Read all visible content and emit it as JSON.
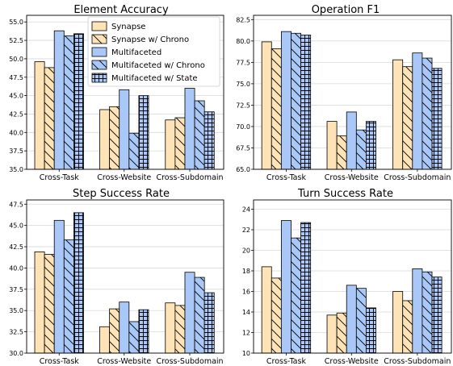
{
  "colors": {
    "synapse": "#fde3b5",
    "multifaceted": "#a9c8f7",
    "edge": "#000000",
    "grid": "#d9d9d9"
  },
  "legend": {
    "placement": "top-right of first panel",
    "entries": [
      {
        "name": "Synapse",
        "color": "#fde3b5",
        "hatch": "none"
      },
      {
        "name": "Synapse w/ Chrono",
        "color": "#fde3b5",
        "hatch": "backslash"
      },
      {
        "name": "Multifaceted",
        "color": "#a9c8f7",
        "hatch": "none"
      },
      {
        "name": "Multifaceted w/ Chrono",
        "color": "#a9c8f7",
        "hatch": "backslash"
      },
      {
        "name": "Multifaceted w/ State",
        "color": "#a9c8f7",
        "hatch": "grid"
      }
    ]
  },
  "chart_data": [
    {
      "type": "bar",
      "title": "Element Accuracy",
      "categories": [
        "Cross-Task",
        "Cross-Website",
        "Cross-Subdomain"
      ],
      "ylim": [
        35.0,
        55.9
      ],
      "yticks": [
        "35.0",
        "37.5",
        "40.0",
        "42.5",
        "45.0",
        "47.5",
        "50.0",
        "52.5",
        "55.0"
      ],
      "grid": "horizontal",
      "series": [
        {
          "name": "Synapse",
          "values": [
            49.6,
            43.1,
            41.7
          ]
        },
        {
          "name": "Synapse w/ Chrono",
          "values": [
            48.8,
            43.5,
            42.0
          ]
        },
        {
          "name": "Multifaceted",
          "values": [
            53.8,
            45.8,
            46.0
          ]
        },
        {
          "name": "Multifaceted w/ Chrono",
          "values": [
            53.1,
            39.9,
            44.3
          ]
        },
        {
          "name": "Multifaceted w/ State",
          "values": [
            53.4,
            45.0,
            42.8
          ]
        }
      ]
    },
    {
      "type": "bar",
      "title": "Operation F1",
      "categories": [
        "Cross-Task",
        "Cross-Website",
        "Cross-Subdomain"
      ],
      "ylim": [
        65.0,
        83.0
      ],
      "yticks": [
        "65.0",
        "67.5",
        "70.0",
        "72.5",
        "75.0",
        "77.5",
        "80.0",
        "82.5"
      ],
      "grid": "horizontal",
      "series": [
        {
          "name": "Synapse",
          "values": [
            79.9,
            70.6,
            77.8
          ]
        },
        {
          "name": "Synapse w/ Chrono",
          "values": [
            79.1,
            68.9,
            77.0
          ]
        },
        {
          "name": "Multifaceted",
          "values": [
            81.1,
            71.7,
            78.6
          ]
        },
        {
          "name": "Multifaceted w/ Chrono",
          "values": [
            80.9,
            69.6,
            78.0
          ]
        },
        {
          "name": "Multifaceted w/ State",
          "values": [
            80.7,
            70.6,
            76.8
          ]
        }
      ]
    },
    {
      "type": "bar",
      "title": "Step Success Rate",
      "categories": [
        "Cross-Task",
        "Cross-Website",
        "Cross-Subdomain"
      ],
      "ylim": [
        30.0,
        48.0
      ],
      "yticks": [
        "30.0",
        "32.5",
        "35.0",
        "37.5",
        "40.0",
        "42.5",
        "45.0",
        "47.5"
      ],
      "grid": "horizontal",
      "series": [
        {
          "name": "Synapse",
          "values": [
            41.9,
            33.1,
            35.9
          ]
        },
        {
          "name": "Synapse w/ Chrono",
          "values": [
            41.6,
            35.2,
            35.6
          ]
        },
        {
          "name": "Multifaceted",
          "values": [
            45.6,
            36.0,
            39.5
          ]
        },
        {
          "name": "Multifaceted w/ Chrono",
          "values": [
            43.3,
            33.7,
            38.9
          ]
        },
        {
          "name": "Multifaceted w/ State",
          "values": [
            46.5,
            35.1,
            37.1
          ]
        }
      ]
    },
    {
      "type": "bar",
      "title": "Turn Success Rate",
      "categories": [
        "Cross-Task",
        "Cross-Website",
        "Cross-Subdomain"
      ],
      "ylim": [
        10.0,
        24.9
      ],
      "yticks": [
        "10",
        "12",
        "14",
        "16",
        "18",
        "20",
        "22",
        "24"
      ],
      "grid": "horizontal",
      "series": [
        {
          "name": "Synapse",
          "values": [
            18.4,
            13.7,
            16.0
          ]
        },
        {
          "name": "Synapse w/ Chrono",
          "values": [
            17.3,
            13.9,
            15.1
          ]
        },
        {
          "name": "Multifaceted",
          "values": [
            22.9,
            16.6,
            18.2
          ]
        },
        {
          "name": "Multifaceted w/ Chrono",
          "values": [
            21.2,
            16.3,
            17.9
          ]
        },
        {
          "name": "Multifaceted w/ State",
          "values": [
            22.7,
            14.4,
            17.4
          ]
        }
      ]
    }
  ]
}
